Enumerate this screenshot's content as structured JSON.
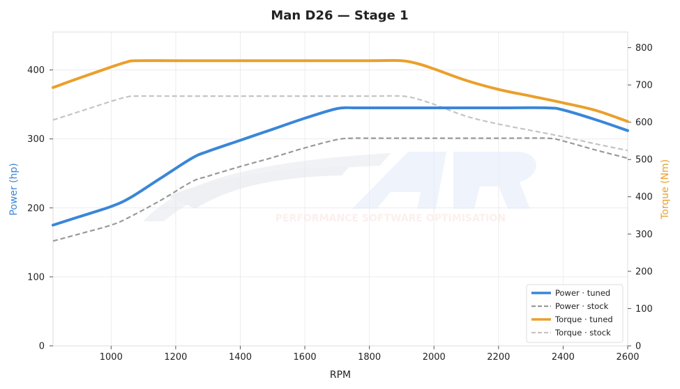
{
  "chart_data": {
    "type": "line",
    "title": "Man D26 — Stage 1",
    "xlabel": "RPM",
    "ylabel_left": "Power (hp)",
    "ylabel_right": "Torque (Nm)",
    "xlim": [
      820,
      2600
    ],
    "ylim_left": [
      0,
      455
    ],
    "ylim_right": [
      0,
      842
    ],
    "xticks": [
      1000,
      1200,
      1400,
      1600,
      1800,
      2000,
      2200,
      2400,
      2600
    ],
    "yticks_left": [
      0,
      100,
      200,
      300,
      400
    ],
    "yticks_right": [
      0,
      100,
      200,
      300,
      400,
      500,
      600,
      700,
      800
    ],
    "grid": true,
    "legend_position": "bottom-right",
    "watermark_text": "PERFORMANCE SOFTWARE OPTIMISATION",
    "colors": {
      "power": "#3a86d8",
      "torque": "#eb9f2b",
      "stock_power": "#999999",
      "stock_torque": "#c4c4c4"
    },
    "series": [
      {
        "name": "Power · tuned",
        "axis": "left",
        "color": "#3a86d8",
        "dash": false,
        "x": [
          820,
          900,
          1000,
          1060,
          1150,
          1250,
          1300,
          1400,
          1500,
          1600,
          1700,
          1750,
          1800,
          2000,
          2200,
          2350,
          2400,
          2500,
          2600
        ],
        "y": [
          175,
          187,
          202,
          215,
          242,
          272,
          282,
          298,
          314,
          330,
          344,
          345,
          345,
          345,
          345,
          345,
          342,
          328,
          312
        ]
      },
      {
        "name": "Power · stock",
        "axis": "left",
        "color": "#999999",
        "dash": true,
        "x": [
          820,
          900,
          1000,
          1050,
          1150,
          1250,
          1300,
          1400,
          1500,
          1600,
          1700,
          1750,
          1800,
          2000,
          2200,
          2350,
          2400,
          2500,
          2600
        ],
        "y": [
          152,
          162,
          175,
          185,
          210,
          238,
          246,
          260,
          273,
          287,
          299,
          301,
          301,
          301,
          301,
          301,
          297,
          284,
          272
        ]
      },
      {
        "name": "Torque · tuned",
        "axis": "right",
        "color": "#eb9f2b",
        "dash": false,
        "x": [
          820,
          900,
          1000,
          1050,
          1080,
          1200,
          1400,
          1600,
          1800,
          1900,
          1950,
          2000,
          2100,
          2200,
          2300,
          2400,
          2500,
          2600
        ],
        "y": [
          693,
          718,
          748,
          762,
          765,
          765,
          765,
          765,
          765,
          765,
          757,
          743,
          712,
          688,
          670,
          652,
          632,
          602
        ]
      },
      {
        "name": "Torque · stock",
        "axis": "right",
        "color": "#c4c4c4",
        "dash": true,
        "x": [
          820,
          900,
          1000,
          1050,
          1080,
          1200,
          1400,
          1600,
          1800,
          1900,
          1950,
          2000,
          2100,
          2200,
          2300,
          2400,
          2500,
          2600
        ],
        "y": [
          606,
          628,
          656,
          668,
          670,
          670,
          670,
          670,
          670,
          670,
          662,
          648,
          616,
          595,
          578,
          561,
          542,
          524
        ]
      }
    ]
  }
}
